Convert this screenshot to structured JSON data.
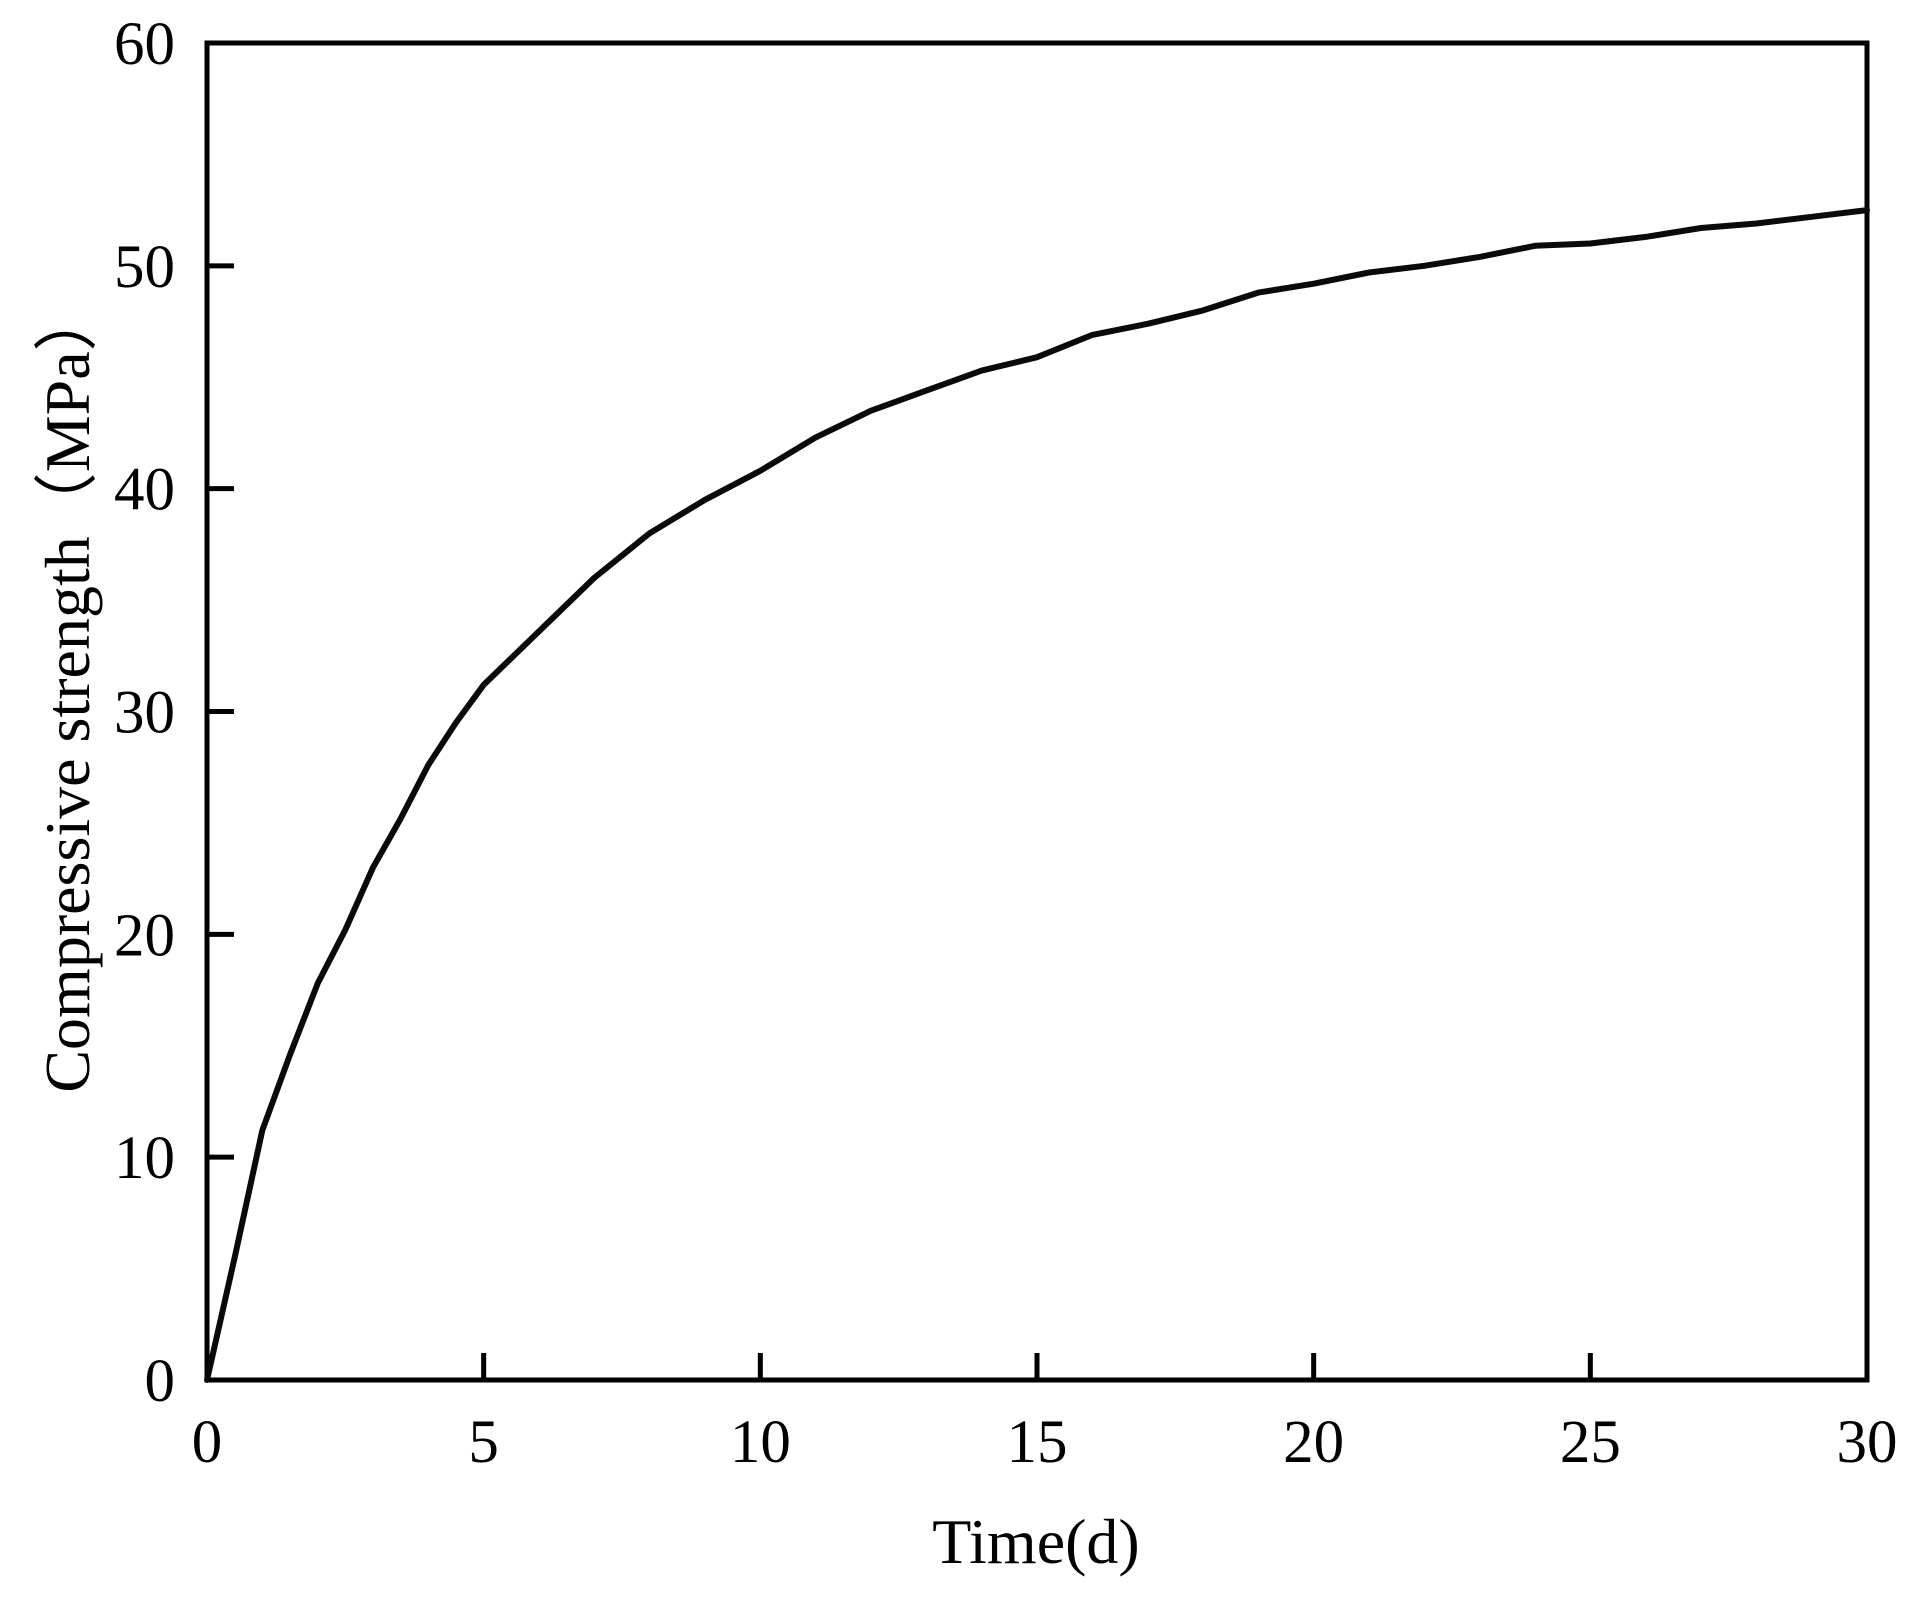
{
  "figure": {
    "background": "#ffffff",
    "curve_color": "#0a0a0a",
    "axis_color": "#000000"
  },
  "chart_data": {
    "type": "line",
    "title": "",
    "xlabel": "Time(d)",
    "ylabel": "Compressive strength（MPa）",
    "xlim": [
      0,
      30
    ],
    "ylim": [
      0,
      60
    ],
    "x_ticks": [
      0,
      5,
      10,
      15,
      20,
      25,
      30
    ],
    "y_ticks": [
      0,
      10,
      20,
      30,
      40,
      50,
      60
    ],
    "grid": false,
    "legend_position": "none",
    "tick_direction": "in",
    "series": [
      {
        "name": "Compressive strength",
        "x": [
          0,
          0.5,
          1,
          1.5,
          2,
          2.5,
          3,
          3.5,
          4,
          4.5,
          5,
          6,
          7,
          8,
          9,
          10,
          11,
          12,
          13,
          14,
          15,
          16,
          17,
          18,
          19,
          20,
          21,
          22,
          23,
          24,
          25,
          26,
          27,
          28,
          29,
          30
        ],
        "y": [
          0,
          5.5,
          11.2,
          14.6,
          17.8,
          20.2,
          23.0,
          25.2,
          27.6,
          29.5,
          31.2,
          33.6,
          36.0,
          38.0,
          39.5,
          40.8,
          42.3,
          43.5,
          44.4,
          45.3,
          45.9,
          46.9,
          47.4,
          48.0,
          48.8,
          49.2,
          49.7,
          50.0,
          50.4,
          50.9,
          51.0,
          51.3,
          51.7,
          51.9,
          52.2,
          52.5
        ]
      }
    ]
  }
}
